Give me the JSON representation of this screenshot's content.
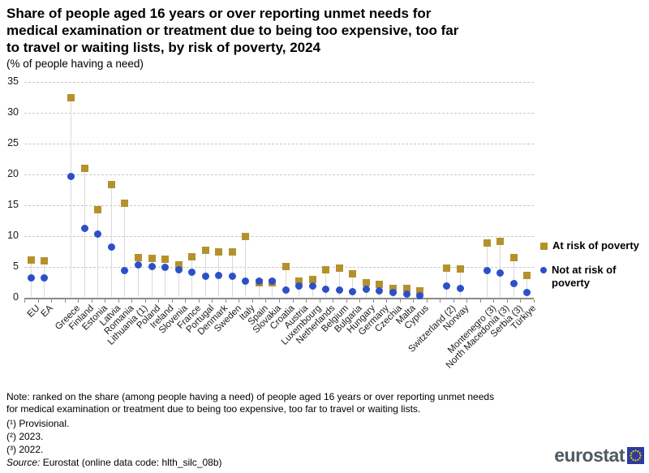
{
  "header": {
    "title_lines": [
      "Share of people aged 16 years or over reporting unmet needs for",
      "medical examination or treatment due to being too expensive, too far",
      "to travel or waiting lists, by risk of poverty, 2024"
    ],
    "subtitle": "(% of people having a need)"
  },
  "chart_data": {
    "type": "scatter",
    "title": "Share of people aged 16 years or over reporting unmet needs for medical examination or treatment due to being too expensive, too far to travel or waiting lists, by risk of poverty, 2024",
    "subtitle": "(% of people having a need)",
    "ylabel": "% of people having a need",
    "ylim": [
      0,
      35
    ],
    "yticks": [
      0,
      5,
      10,
      15,
      20,
      25,
      30,
      35
    ],
    "grid": "horizontal-dashed",
    "legend_position": "right",
    "categories": [
      "EU",
      "EA",
      null,
      "Greece",
      "Finland",
      "Estonia",
      "Latvia",
      "Romania",
      "Lithuania (1)",
      "Poland",
      "Ireland",
      "Slovenia",
      "France",
      "Portugal",
      "Denmark",
      "Sweden",
      "Italy",
      "Spain",
      "Slovakia",
      "Croatia",
      "Austria",
      "Luxembourg",
      "Netherlands",
      "Belgium",
      "Bulgaria",
      "Hungary",
      "Germany",
      "Czechia",
      "Malta",
      "Cyprus",
      null,
      "Switzerland (2)",
      "Norway",
      null,
      "Montenegro (3)",
      "North Macedonia (3)",
      "Serbia (3)",
      "Türkiye"
    ],
    "series": [
      {
        "name": "At risk of poverty",
        "marker": "square",
        "color": "#B5912C",
        "values": [
          6.0,
          5.9,
          null,
          32.4,
          21.0,
          14.3,
          18.3,
          15.3,
          6.5,
          6.3,
          6.2,
          5.3,
          6.6,
          7.6,
          7.4,
          7.4,
          9.9,
          2.4,
          2.4,
          5.0,
          2.7,
          2.9,
          4.5,
          4.8,
          3.8,
          2.4,
          2.1,
          1.4,
          1.5,
          1.0,
          null,
          4.7,
          4.6,
          null,
          8.8,
          9.1,
          6.4,
          3.6
        ]
      },
      {
        "name": "Not at risk of poverty",
        "marker": "circle",
        "color": "#2B50C8",
        "values": [
          3.2,
          3.2,
          null,
          19.6,
          11.2,
          10.3,
          8.2,
          4.3,
          5.3,
          5.0,
          4.9,
          4.5,
          4.1,
          3.4,
          3.5,
          3.4,
          2.7,
          2.6,
          2.7,
          1.2,
          1.9,
          1.9,
          1.3,
          1.2,
          0.9,
          1.3,
          1.1,
          0.8,
          0.5,
          0.3,
          null,
          1.9,
          1.4,
          null,
          4.3,
          3.9,
          2.2,
          0.8
        ]
      }
    ]
  },
  "footer": {
    "note_lines": [
      "Note: ranked on the share (among people having a need) of people aged 16 years or over reporting unmet needs",
      "for medical examination or treatment due to being too expensive, too far to travel or waiting lists."
    ],
    "footnote1": "(¹) Provisional.",
    "footnote2": "(²) 2023.",
    "footnote3": "(³) 2022.",
    "source_label": "Source:",
    "source_rest": " Eurostat (online data code: hlth_silc_08b)"
  },
  "logo": {
    "text": "eurostat",
    "flag_color": "#2A3C9E",
    "star_color": "#FFCC00"
  }
}
